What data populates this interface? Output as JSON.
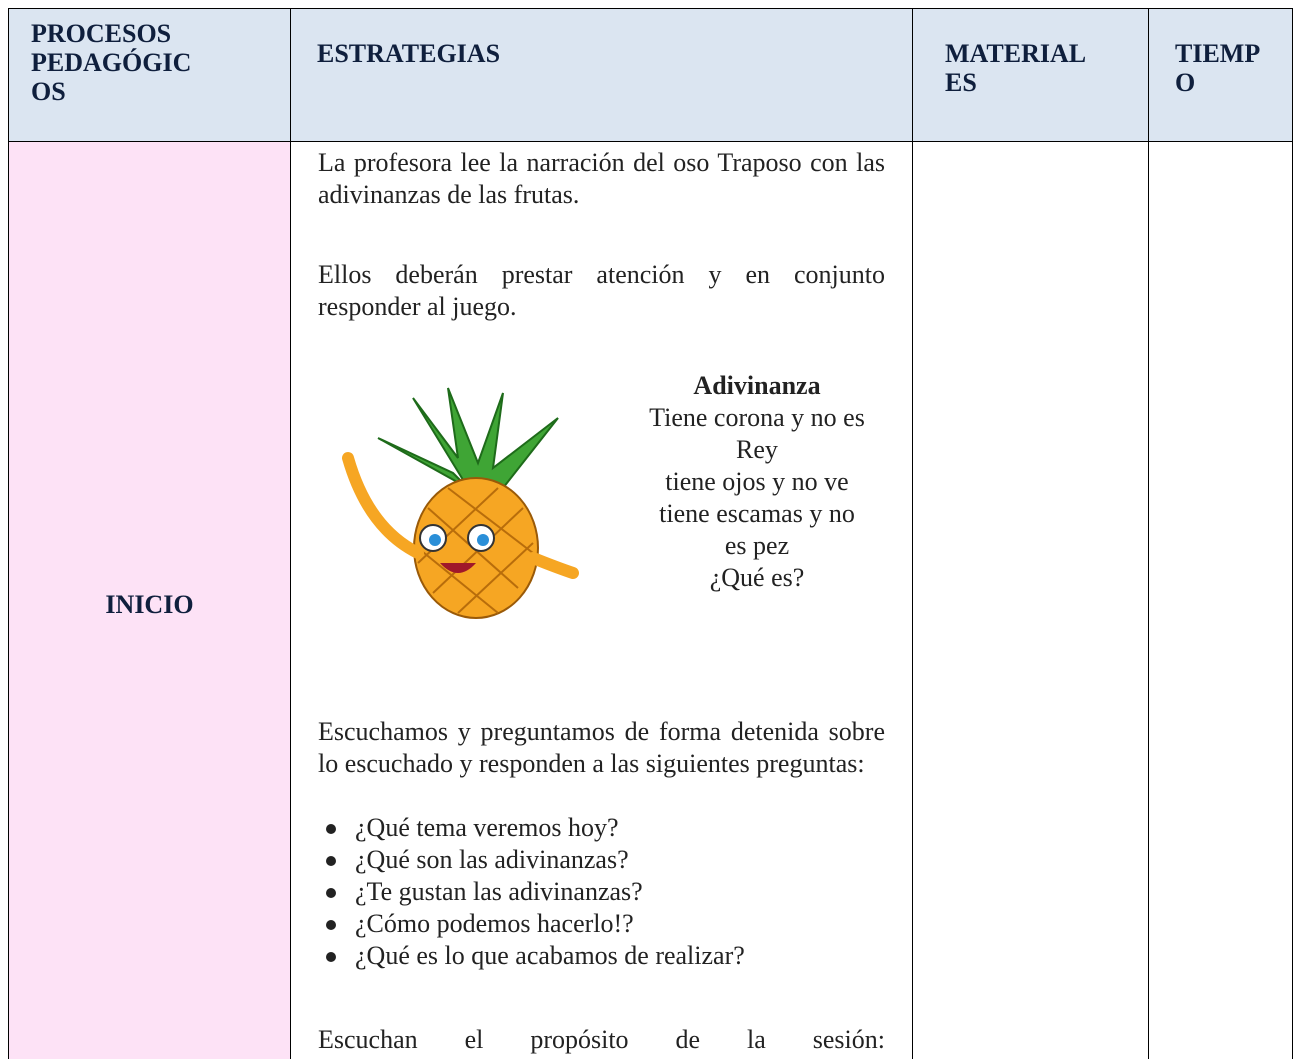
{
  "header": {
    "columns": [
      [
        "PROCESOS",
        "PEDAGÓGIC",
        "OS"
      ],
      [
        "ESTRATEGIAS"
      ],
      [
        "MATERIAL",
        "ES"
      ],
      [
        "TIEMP",
        "O"
      ]
    ]
  },
  "row": {
    "stage": "INICIO",
    "strategies": {
      "paragraphs": [
        "La profesora lee la narración del oso Traposo con las adivinanzas de las frutas.",
        "Ellos deberán prestar atención y en conjunto responder al juego."
      ],
      "riddle": {
        "title": "Adivinanza",
        "lines": [
          "Tiene corona y no es",
          "Rey",
          "tiene ojos y no ve",
          "tiene escamas y no",
          "es pez",
          "¿Qué es?"
        ]
      },
      "intro": "Escuchamos y preguntamos de forma detenida sobre lo escuchado y responden a las siguientes preguntas:",
      "questions": [
        "¿Qué tema veremos hoy?",
        "¿Qué son las adivinanzas?",
        "¿Te gustan las adivinanzas?",
        "¿Cómo podemos hacerlo!?",
        "¿Qué es lo que acabamos de realizar?"
      ],
      "closing": "Escuchan el propósito de la sesión:"
    }
  }
}
